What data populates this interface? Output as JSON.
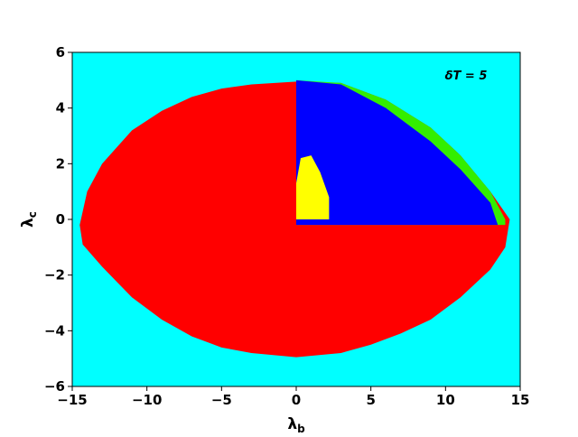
{
  "chart_data": {
    "type": "region",
    "annotation": "δT = 5",
    "xlabel": {
      "symbol": "λ",
      "subscript": "b"
    },
    "ylabel": {
      "symbol": "λ",
      "subscript": "c"
    },
    "xlim": [
      -15,
      15
    ],
    "ylim": [
      -6,
      6
    ],
    "xticks": [
      {
        "value": -15,
        "label": "−15"
      },
      {
        "value": -10,
        "label": "−10"
      },
      {
        "value": -5,
        "label": "−5"
      },
      0,
      5,
      10,
      15
    ],
    "yticks": [
      {
        "value": -6,
        "label": "−6"
      },
      {
        "value": -4,
        "label": "−4"
      },
      {
        "value": -2,
        "label": "−2"
      },
      0,
      2,
      4,
      6
    ],
    "series": [
      {
        "color": "#00ffff",
        "x": [
          -15,
          15,
          15,
          -15
        ],
        "y": [
          -6,
          -6,
          6,
          6
        ]
      },
      {
        "color": "#ff0000",
        "x": [
          -14.5,
          -14,
          -13,
          -11,
          -9,
          -7,
          -5,
          -3,
          0,
          3,
          6,
          9,
          11,
          13,
          14.3,
          14,
          13,
          11,
          9,
          7,
          5,
          3,
          0,
          -3,
          -5,
          -7,
          -9,
          -11,
          -13,
          -14.3
        ],
        "y": [
          -0.2,
          1,
          2,
          3.2,
          3.9,
          4.4,
          4.7,
          4.85,
          4.95,
          4.9,
          4.3,
          3.3,
          2.3,
          1,
          0,
          -1,
          -1.8,
          -2.8,
          -3.6,
          -4.1,
          -4.5,
          -4.8,
          -4.95,
          -4.8,
          -4.6,
          -4.2,
          -3.6,
          -2.8,
          -1.7,
          -0.9
        ]
      },
      {
        "color": "#33ee00",
        "x": [
          0,
          3,
          6,
          9,
          11,
          13,
          14,
          14,
          0
        ],
        "y": [
          5,
          4.9,
          4.3,
          3.3,
          2.3,
          1,
          0,
          -0.2,
          -0.2
        ]
      },
      {
        "color": "#0000ff",
        "x": [
          0,
          3,
          6,
          9,
          11,
          13,
          13.5,
          0
        ],
        "y": [
          5,
          4.85,
          4.0,
          2.8,
          1.8,
          0.6,
          -0.2,
          -0.2
        ]
      },
      {
        "color": "#ffff00",
        "x": [
          0,
          0,
          0.3,
          1,
          1.6,
          2.2,
          2.2
        ],
        "y": [
          0,
          1.3,
          2.2,
          2.3,
          1.7,
          0.8,
          0
        ]
      }
    ]
  }
}
